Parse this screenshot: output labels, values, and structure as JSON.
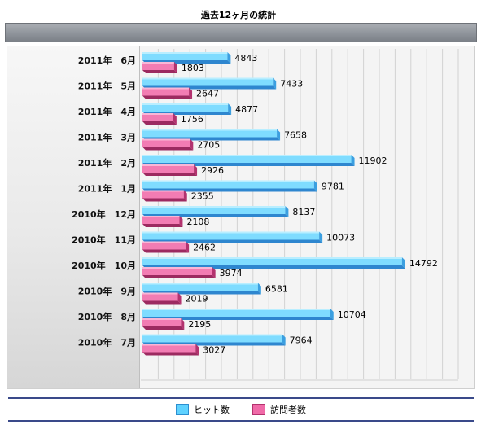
{
  "chart_data": {
    "type": "bar",
    "orientation": "horizontal",
    "title": "過去12ヶ月の統計",
    "categories": [
      "2011年　6月",
      "2011年　5月",
      "2011年　4月",
      "2011年　3月",
      "2011年　2月",
      "2011年　1月",
      "2010年　12月",
      "2010年　11月",
      "2010年　10月",
      "2010年　9月",
      "2010年　8月",
      "2010年　7月"
    ],
    "series": [
      {
        "name": "ヒット数",
        "color": "#5fd2ff",
        "values": [
          4843,
          7433,
          4877,
          7658,
          11902,
          9781,
          8137,
          10073,
          14792,
          6581,
          10704,
          7964
        ]
      },
      {
        "name": "訪問者数",
        "color": "#f06aa8",
        "values": [
          1803,
          2647,
          1756,
          2705,
          2926,
          2355,
          2108,
          2462,
          3974,
          2019,
          2195,
          3027
        ]
      }
    ],
    "xlim": [
      0,
      18000
    ],
    "grid": true,
    "legend_position": "bottom"
  }
}
